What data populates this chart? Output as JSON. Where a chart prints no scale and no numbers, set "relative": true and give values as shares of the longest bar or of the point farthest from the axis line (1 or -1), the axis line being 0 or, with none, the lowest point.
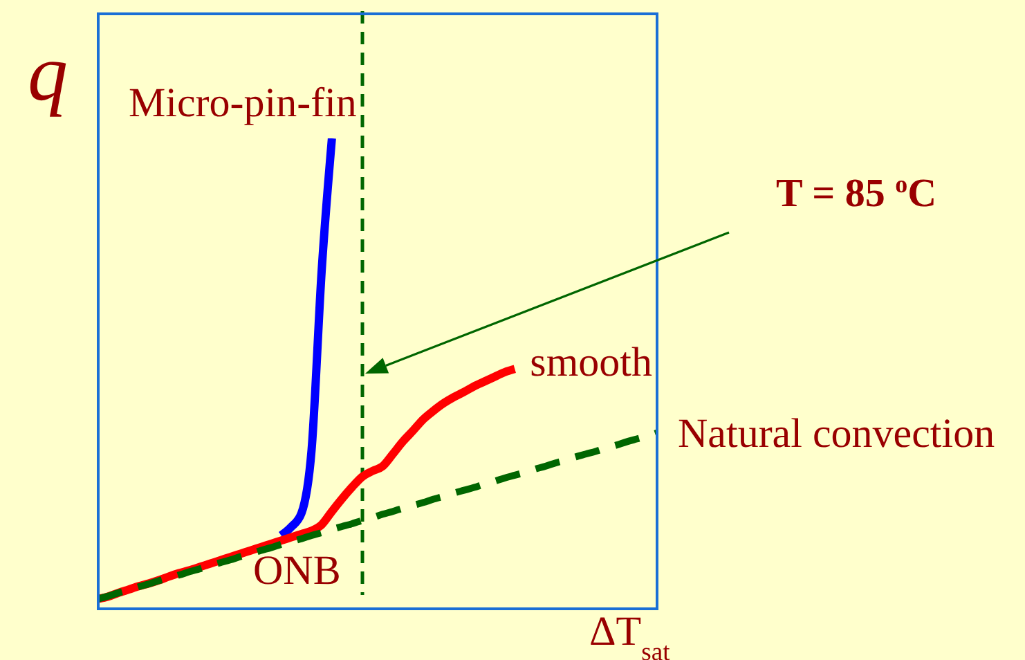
{
  "chart_data": {
    "type": "line",
    "relative": true,
    "ylabel": "q",
    "xlabel": "ΔT$_{sat}$",
    "tick_labels": false,
    "categories": [
      null,
      null,
      null,
      null,
      null,
      null,
      null,
      null,
      null,
      null,
      null,
      null,
      null,
      null,
      null,
      null,
      null,
      null,
      null,
      null,
      null,
      null,
      null,
      null,
      null,
      null,
      null,
      null,
      null,
      null,
      null,
      null,
      null,
      null,
      null,
      null,
      null,
      null,
      null,
      null,
      null,
      null,
      null,
      null,
      null,
      null,
      null,
      null,
      null,
      null,
      null,
      null,
      null,
      null,
      null,
      null
    ],
    "series": [
      {
        "name": "Micro-pin-fin",
        "color": "#0000ff",
        "values": [
          null,
          null,
          null,
          null,
          null,
          null,
          null,
          null,
          null,
          null,
          null,
          null,
          null,
          null,
          null,
          null,
          null,
          null,
          0.156,
          0.174,
          0.203,
          0.338,
          0.721,
          1.0,
          null,
          null,
          null,
          null,
          null,
          null,
          null,
          null,
          null,
          null,
          null,
          null,
          null,
          null,
          null,
          null,
          null,
          null,
          null,
          null,
          null,
          null,
          null,
          null,
          null,
          null,
          null,
          null,
          null,
          null,
          null,
          null
        ]
      },
      {
        "name": "smooth",
        "color": "#ff0000",
        "values": [
          0.021,
          0.026,
          0.034,
          0.041,
          0.048,
          0.054,
          0.061,
          0.069,
          0.076,
          0.082,
          0.089,
          0.096,
          0.103,
          0.11,
          0.117,
          0.124,
          0.131,
          0.138,
          0.145,
          0.152,
          0.159,
          0.166,
          0.179,
          0.207,
          0.234,
          0.259,
          0.281,
          0.293,
          0.303,
          0.329,
          0.356,
          0.379,
          0.403,
          0.421,
          0.437,
          0.45,
          0.461,
          0.473,
          0.483,
          0.493,
          0.503,
          0.51,
          null,
          null,
          null,
          null,
          null,
          null,
          null,
          null,
          null,
          null,
          null,
          null,
          null,
          null
        ]
      },
      {
        "name": "Natural convection",
        "color": "#006600",
        "line_style": "dashed",
        "values": [
          0.021,
          0.027,
          0.034,
          0.04,
          0.047,
          0.053,
          0.06,
          0.066,
          0.072,
          0.079,
          0.085,
          0.092,
          0.098,
          0.104,
          0.111,
          0.117,
          0.124,
          0.13,
          0.137,
          0.143,
          0.149,
          0.156,
          0.162,
          0.169,
          0.175,
          0.181,
          0.188,
          0.194,
          0.201,
          0.207,
          0.214,
          0.22,
          0.226,
          0.233,
          0.239,
          0.246,
          0.252,
          0.258,
          0.265,
          0.271,
          0.278,
          0.284,
          0.29,
          0.297,
          0.303,
          0.31,
          0.316,
          0.323,
          0.329,
          0.335,
          0.342,
          0.348,
          0.355,
          0.361,
          0.367,
          0.374
        ]
      }
    ],
    "annotations": [
      "T = 85 $^{o}$C",
      "ONB"
    ]
  }
}
